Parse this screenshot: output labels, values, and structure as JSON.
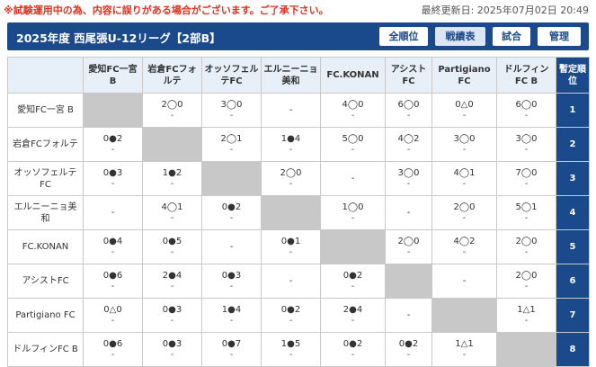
{
  "notice": "※試験運用中の為、内容に誤りがある場合がございます。ご了承下さい。",
  "last_updated": "最終更新日: 2025年07月02日 20:49",
  "league_title": "2025年度 西尾張U-12リーグ【2部B】",
  "nav": [
    "全順位",
    "戦績表",
    "試合",
    "管理"
  ],
  "rank_header": "暫定順位",
  "columns": [
    "愛知FC一宮 B",
    "岩倉FCフォルテ",
    "オッソフェルテFC",
    "エルニーニョ美和",
    "FC.KONAN",
    "アシストFC",
    "Partigiano FC",
    "ドルフィンFC B"
  ],
  "rows": [
    {
      "team": "愛知FC一宮 B",
      "rank": "1",
      "cells": [
        [
          "",
          ""
        ],
        [
          "2◯0",
          "-"
        ],
        [
          "3◯0",
          "-"
        ],
        [
          "-",
          ""
        ],
        [
          "4◯0",
          "-"
        ],
        [
          "6◯0",
          "-"
        ],
        [
          "0△0",
          "-"
        ],
        [
          "6◯0",
          "-"
        ]
      ]
    },
    {
      "team": "岩倉FCフォルテ",
      "rank": "2",
      "cells": [
        [
          "0●2",
          "-"
        ],
        [
          "",
          ""
        ],
        [
          "2◯1",
          "-"
        ],
        [
          "1●4",
          "-"
        ],
        [
          "5◯0",
          "-"
        ],
        [
          "4◯2",
          "-"
        ],
        [
          "3◯0",
          "-"
        ],
        [
          "3◯0",
          "-"
        ]
      ]
    },
    {
      "team": "オッソフェルテFC",
      "rank": "3",
      "cells": [
        [
          "0●3",
          "-"
        ],
        [
          "1●2",
          "-"
        ],
        [
          "",
          ""
        ],
        [
          "2◯0",
          "-"
        ],
        [
          "-",
          ""
        ],
        [
          "3◯0",
          "-"
        ],
        [
          "4◯1",
          "-"
        ],
        [
          "7◯0",
          "-"
        ]
      ]
    },
    {
      "team": "エルニーニョ美和",
      "rank": "4",
      "cells": [
        [
          "-",
          ""
        ],
        [
          "4◯1",
          "-"
        ],
        [
          "0●2",
          "-"
        ],
        [
          "",
          ""
        ],
        [
          "1◯0",
          "-"
        ],
        [
          "-",
          ""
        ],
        [
          "2◯0",
          "-"
        ],
        [
          "5◯1",
          "-"
        ]
      ]
    },
    {
      "team": "FC.KONAN",
      "rank": "5",
      "cells": [
        [
          "0●4",
          "-"
        ],
        [
          "0●5",
          "-"
        ],
        [
          "-",
          ""
        ],
        [
          "0●1",
          "-"
        ],
        [
          "",
          ""
        ],
        [
          "2◯0",
          "-"
        ],
        [
          "4◯2",
          "-"
        ],
        [
          "2◯0",
          "-"
        ]
      ]
    },
    {
      "team": "アシストFC",
      "rank": "6",
      "cells": [
        [
          "0●6",
          "-"
        ],
        [
          "2●4",
          "-"
        ],
        [
          "0●3",
          "-"
        ],
        [
          "-",
          ""
        ],
        [
          "0●2",
          "-"
        ],
        [
          "",
          ""
        ],
        [
          "-",
          ""
        ],
        [
          "2◯0",
          "-"
        ]
      ]
    },
    {
      "team": "Partigiano FC",
      "rank": "7",
      "cells": [
        [
          "0△0",
          "-"
        ],
        [
          "0●3",
          "-"
        ],
        [
          "1●4",
          "-"
        ],
        [
          "0●2",
          "-"
        ],
        [
          "2●4",
          "-"
        ],
        [
          "-",
          ""
        ],
        [
          "",
          ""
        ],
        [
          "1△1",
          "-"
        ]
      ]
    },
    {
      "team": "ドルフィンFC B",
      "rank": "8",
      "cells": [
        [
          "0●6",
          "-"
        ],
        [
          "0●3",
          "-"
        ],
        [
          "0●7",
          "-"
        ],
        [
          "1●5",
          "-"
        ],
        [
          "0●2",
          "-"
        ],
        [
          "0●2",
          "-"
        ],
        [
          "1△1",
          "-"
        ],
        [
          "",
          ""
        ]
      ]
    }
  ]
}
